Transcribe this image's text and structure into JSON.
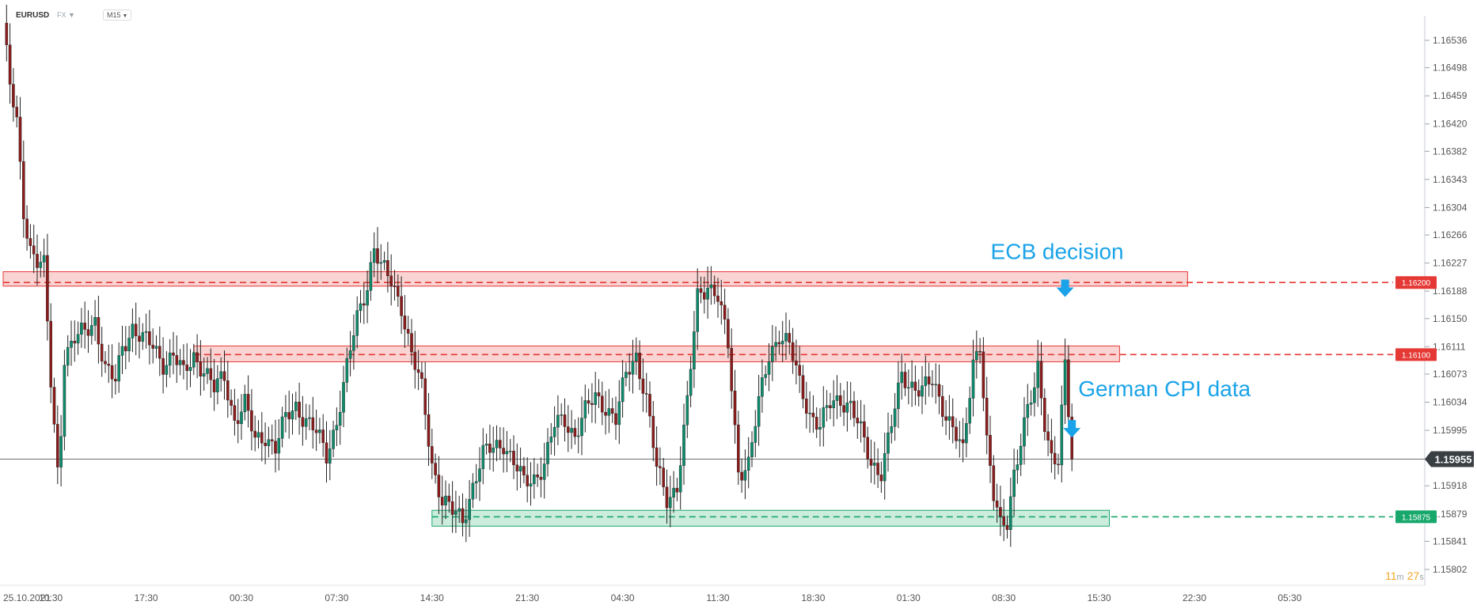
{
  "header": {
    "symbol": "EURUSD",
    "market": "FX",
    "market_arrow": "▼",
    "timeframe": "M15",
    "timeframe_arrow": "▼"
  },
  "timer": {
    "minutes": "11",
    "m_unit": "m",
    "seconds": "27",
    "s_unit": "s"
  },
  "colors": {
    "up": "#0e8a6b",
    "down": "#8b1c1c",
    "resistance": "#e53935",
    "support": "#18a86b",
    "annotation": "#1aa3e8",
    "price_tag": "#3a3f44"
  },
  "chart_data": {
    "type": "candlestick",
    "ylim": [
      1.1578,
      1.1657
    ],
    "y_ticks": [
      "1.16536",
      "1.16498",
      "1.16459",
      "1.16420",
      "1.16382",
      "1.16343",
      "1.16304",
      "1.16266",
      "1.16227",
      "1.16188",
      "1.16150",
      "1.16111",
      "1.16073",
      "1.16034",
      "1.15995",
      "1.15918",
      "1.15879",
      "1.15841",
      "1.15802"
    ],
    "x_ticks": [
      "25.10.2021",
      "10:30",
      "17:30",
      "00:30",
      "07:30",
      "14:30",
      "21:30",
      "04:30",
      "11:30",
      "18:30",
      "01:30",
      "08:30",
      "15:30",
      "22:30",
      "05:30"
    ],
    "x_tick_index": [
      0,
      14,
      42,
      70,
      98,
      126,
      154,
      182,
      210,
      238,
      266,
      294,
      322,
      350,
      378
    ],
    "current_price": "1.15955",
    "current_price_value": 1.15955,
    "levels": [
      {
        "label": "1.16200",
        "price": 1.162,
        "zone": [
          1.16195,
          1.16215
        ],
        "zone_range": [
          0,
          348
        ],
        "kind": "resistance"
      },
      {
        "label": "1.16100",
        "price": 1.161,
        "zone": [
          1.1609,
          1.16112
        ],
        "zone_range": [
          56,
          328
        ],
        "kind": "resistance"
      },
      {
        "label": "1.15875",
        "price": 1.15875,
        "zone": [
          1.15862,
          1.15884
        ],
        "zone_range": [
          126,
          325
        ],
        "kind": "support"
      }
    ],
    "annotations": [
      {
        "text": "ECB decision",
        "index": 312,
        "price": 1.1618
      },
      {
        "text": "German CPI data",
        "index": 314,
        "price": 1.15985
      }
    ],
    "candle_count": 314,
    "anchors": [
      [
        0,
        1.1656
      ],
      [
        2,
        1.1647
      ],
      [
        4,
        1.1642
      ],
      [
        6,
        1.163
      ],
      [
        8,
        1.1625
      ],
      [
        10,
        1.1623
      ],
      [
        12,
        1.1622
      ],
      [
        14,
        1.1606
      ],
      [
        16,
        1.1594
      ],
      [
        17,
        1.16
      ],
      [
        18,
        1.161
      ],
      [
        21,
        1.1612
      ],
      [
        24,
        1.1613
      ],
      [
        27,
        1.1615
      ],
      [
        30,
        1.1608
      ],
      [
        33,
        1.1606
      ],
      [
        35,
        1.1611
      ],
      [
        38,
        1.1614
      ],
      [
        41,
        1.1612
      ],
      [
        44,
        1.1611
      ],
      [
        47,
        1.1609
      ],
      [
        50,
        1.161
      ],
      [
        53,
        1.1607
      ],
      [
        56,
        1.161
      ],
      [
        59,
        1.1608
      ],
      [
        62,
        1.1605
      ],
      [
        65,
        1.1607
      ],
      [
        68,
        1.1601
      ],
      [
        71,
        1.1603
      ],
      [
        74,
        1.1598
      ],
      [
        77,
        1.1599
      ],
      [
        80,
        1.1597
      ],
      [
        83,
        1.1601
      ],
      [
        86,
        1.1603
      ],
      [
        89,
        1.1601
      ],
      [
        92,
        1.1599
      ],
      [
        95,
        1.1596
      ],
      [
        98,
        1.1601
      ],
      [
        101,
        1.1608
      ],
      [
        104,
        1.1615
      ],
      [
        107,
        1.162
      ],
      [
        109,
        1.1625
      ],
      [
        111,
        1.1622
      ],
      [
        114,
        1.162
      ],
      [
        117,
        1.1617
      ],
      [
        120,
        1.161
      ],
      [
        123,
        1.1605
      ],
      [
        126,
        1.1595
      ],
      [
        129,
        1.159
      ],
      [
        132,
        1.1588
      ],
      [
        135,
        1.1587
      ],
      [
        138,
        1.1592
      ],
      [
        141,
        1.1596
      ],
      [
        144,
        1.1597
      ],
      [
        147,
        1.1598
      ],
      [
        150,
        1.1595
      ],
      [
        153,
        1.1592
      ],
      [
        156,
        1.1593
      ],
      [
        159,
        1.1595
      ],
      [
        162,
        1.16
      ],
      [
        165,
        1.1601
      ],
      [
        168,
        1.1599
      ],
      [
        171,
        1.1602
      ],
      [
        174,
        1.1604
      ],
      [
        177,
        1.1603
      ],
      [
        180,
        1.1601
      ],
      [
        183,
        1.1607
      ],
      [
        186,
        1.161
      ],
      [
        189,
        1.1604
      ],
      [
        192,
        1.1594
      ],
      [
        195,
        1.159
      ],
      [
        198,
        1.1592
      ],
      [
        201,
        1.1603
      ],
      [
        204,
        1.1618
      ],
      [
        207,
        1.162
      ],
      [
        210,
        1.1618
      ],
      [
        213,
        1.1611
      ],
      [
        216,
        1.1594
      ],
      [
        219,
        1.1595
      ],
      [
        222,
        1.1603
      ],
      [
        225,
        1.161
      ],
      [
        228,
        1.1613
      ],
      [
        231,
        1.1611
      ],
      [
        234,
        1.1606
      ],
      [
        237,
        1.1602
      ],
      [
        240,
        1.16
      ],
      [
        243,
        1.1603
      ],
      [
        246,
        1.1604
      ],
      [
        249,
        1.1603
      ],
      [
        252,
        1.1599
      ],
      [
        255,
        1.1595
      ],
      [
        258,
        1.1594
      ],
      [
        261,
        1.16
      ],
      [
        264,
        1.1607
      ],
      [
        267,
        1.1606
      ],
      [
        270,
        1.1605
      ],
      [
        273,
        1.1606
      ],
      [
        276,
        1.1603
      ],
      [
        279,
        1.16
      ],
      [
        282,
        1.1596
      ],
      [
        285,
        1.1609
      ],
      [
        287,
        1.1612
      ],
      [
        289,
        1.1598
      ],
      [
        291,
        1.159
      ],
      [
        293,
        1.1586
      ],
      [
        295,
        1.1587
      ],
      [
        297,
        1.1594
      ],
      [
        299,
        1.1598
      ],
      [
        301,
        1.1602
      ],
      [
        303,
        1.1605
      ],
      [
        304,
        1.1608
      ],
      [
        306,
        1.1601
      ],
      [
        308,
        1.1596
      ],
      [
        310,
        1.1595
      ],
      [
        312,
        1.1608
      ],
      [
        314,
        1.15955
      ]
    ]
  }
}
